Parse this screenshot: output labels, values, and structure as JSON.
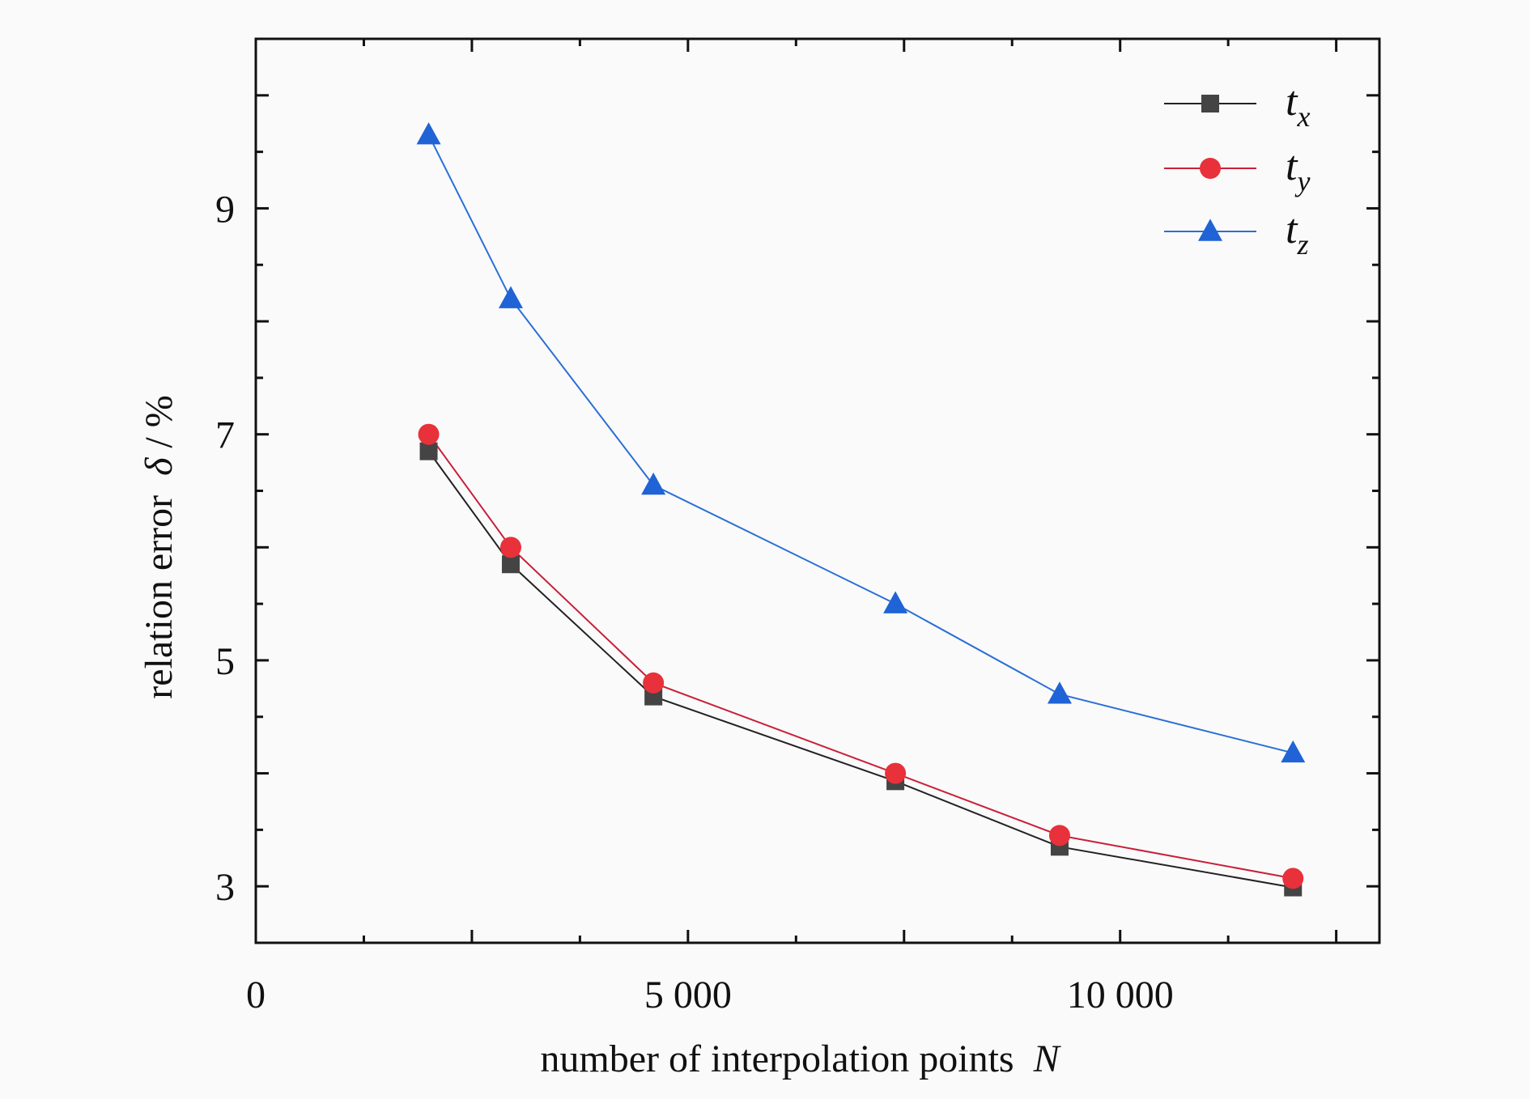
{
  "chart_data": {
    "type": "line",
    "title": "",
    "xlabel": "number of interpolation points",
    "xlabel_var": "N",
    "ylabel": "relation error",
    "ylabel_var": "δ",
    "ylabel_unit": " / %",
    "xlim": [
      0,
      13000
    ],
    "ylim": [
      2.5,
      10.5
    ],
    "x_ticks": [
      0,
      5000,
      10000
    ],
    "x_tick_labels": [
      "0",
      "5 000",
      "10 000"
    ],
    "x_minor_ticks": [
      2500,
      7500,
      12500
    ],
    "y_ticks": [
      3,
      5,
      7,
      9
    ],
    "y_tick_labels": [
      "3",
      "5",
      "7",
      "9"
    ],
    "y_minor_ticks": [
      4,
      6,
      8,
      10
    ],
    "legend_position": "top-right",
    "x": [
      2000,
      2950,
      4600,
      7400,
      9300,
      12000
    ],
    "series": [
      {
        "name": "t",
        "sub": "x",
        "marker": "square",
        "color": "#444444",
        "line_color": "#222222",
        "values": [
          6.85,
          5.85,
          4.68,
          3.93,
          3.35,
          2.99
        ]
      },
      {
        "name": "t",
        "sub": "y",
        "marker": "circle",
        "color": "#e8313a",
        "line_color": "#c8203a",
        "values": [
          7.0,
          6.0,
          4.8,
          4.0,
          3.45,
          3.07
        ]
      },
      {
        "name": "t",
        "sub": "z",
        "marker": "triangle",
        "color": "#1f63d6",
        "line_color": "#2a6fd6",
        "values": [
          9.65,
          8.2,
          6.55,
          5.5,
          4.7,
          4.18
        ]
      }
    ]
  }
}
